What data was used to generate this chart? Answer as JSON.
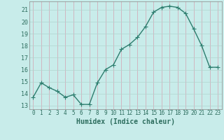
{
  "x": [
    0,
    1,
    2,
    3,
    4,
    5,
    6,
    7,
    8,
    9,
    10,
    11,
    12,
    13,
    14,
    15,
    16,
    17,
    18,
    19,
    20,
    21,
    22,
    23
  ],
  "y": [
    13.7,
    14.9,
    14.5,
    14.2,
    13.7,
    13.9,
    13.1,
    13.1,
    14.9,
    16.0,
    16.4,
    17.7,
    18.1,
    18.7,
    19.6,
    20.8,
    21.2,
    21.3,
    21.2,
    20.7,
    19.4,
    18.0,
    16.2,
    16.2
  ],
  "line_color": "#2d7d6e",
  "marker": "+",
  "marker_size": 4,
  "marker_linewidth": 0.8,
  "line_width": 1.0,
  "bg_color": "#c8ecea",
  "grid_h_color": "#b0d4d0",
  "grid_v_color": "#d4a0b0",
  "xlabel": "Humidex (Indice chaleur)",
  "ylabel_ticks": [
    13,
    14,
    15,
    16,
    17,
    18,
    19,
    20,
    21
  ],
  "ylim": [
    12.7,
    21.7
  ],
  "xlim": [
    -0.5,
    23.5
  ],
  "xtick_labels": [
    "0",
    "1",
    "2",
    "3",
    "4",
    "5",
    "6",
    "7",
    "8",
    "9",
    "10",
    "11",
    "12",
    "13",
    "14",
    "15",
    "16",
    "17",
    "18",
    "19",
    "20",
    "21",
    "22",
    "23"
  ],
  "tick_color": "#2d6d5e",
  "xlabel_color": "#2d6d5e",
  "xlabel_fontsize": 7,
  "tick_fontsize": 5.5
}
